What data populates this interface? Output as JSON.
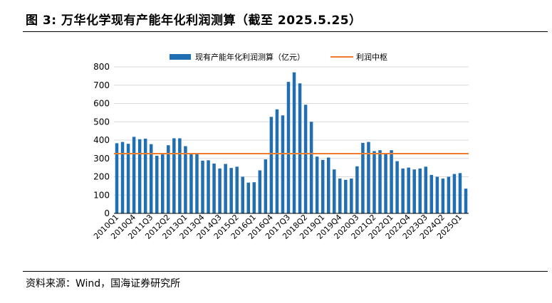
{
  "figure": {
    "label": "图 3:",
    "title": "万华化学现有产能年化利润测算（截至 2025.5.25）",
    "source": "资料来源：Wind，国海证券研究所"
  },
  "chart_data": {
    "type": "bar",
    "title": "",
    "xlabel": "",
    "ylabel": "",
    "ylim": [
      0,
      800
    ],
    "yticks": [
      0,
      100,
      200,
      300,
      400,
      500,
      600,
      700,
      800
    ],
    "grid": true,
    "legend_position": "top",
    "colors": {
      "bars": "#1f6fb2",
      "median_line": "#ed7d31"
    },
    "x_tick_labels": [
      "2010Q1",
      "2010Q4",
      "2011Q3",
      "2012Q2",
      "2013Q1",
      "2013Q4",
      "2014Q3",
      "2015Q2",
      "2016Q1",
      "2016Q4",
      "2017Q3",
      "2018Q2",
      "2019Q1",
      "2019Q4",
      "2020Q3",
      "2021Q2",
      "2022Q1",
      "2022Q4",
      "2023Q3",
      "2024Q2",
      "2025Q1"
    ],
    "series": [
      {
        "name": "现有产能年化利润测算（亿元）",
        "type": "bar",
        "values": [
          383,
          390,
          380,
          418,
          405,
          408,
          378,
          315,
          322,
          372,
          410,
          410,
          367,
          328,
          325,
          288,
          290,
          272,
          245,
          270,
          248,
          255,
          200,
          168,
          170,
          235,
          295,
          527,
          568,
          535,
          718,
          770,
          710,
          593,
          500,
          310,
          292,
          305,
          240,
          190,
          183,
          190,
          257,
          385,
          390,
          340,
          345,
          330,
          345,
          285,
          245,
          250,
          240,
          245,
          255,
          210,
          200,
          190,
          200,
          215,
          220,
          135
        ]
      },
      {
        "name": "利润中枢",
        "type": "line",
        "value": 326
      }
    ]
  }
}
